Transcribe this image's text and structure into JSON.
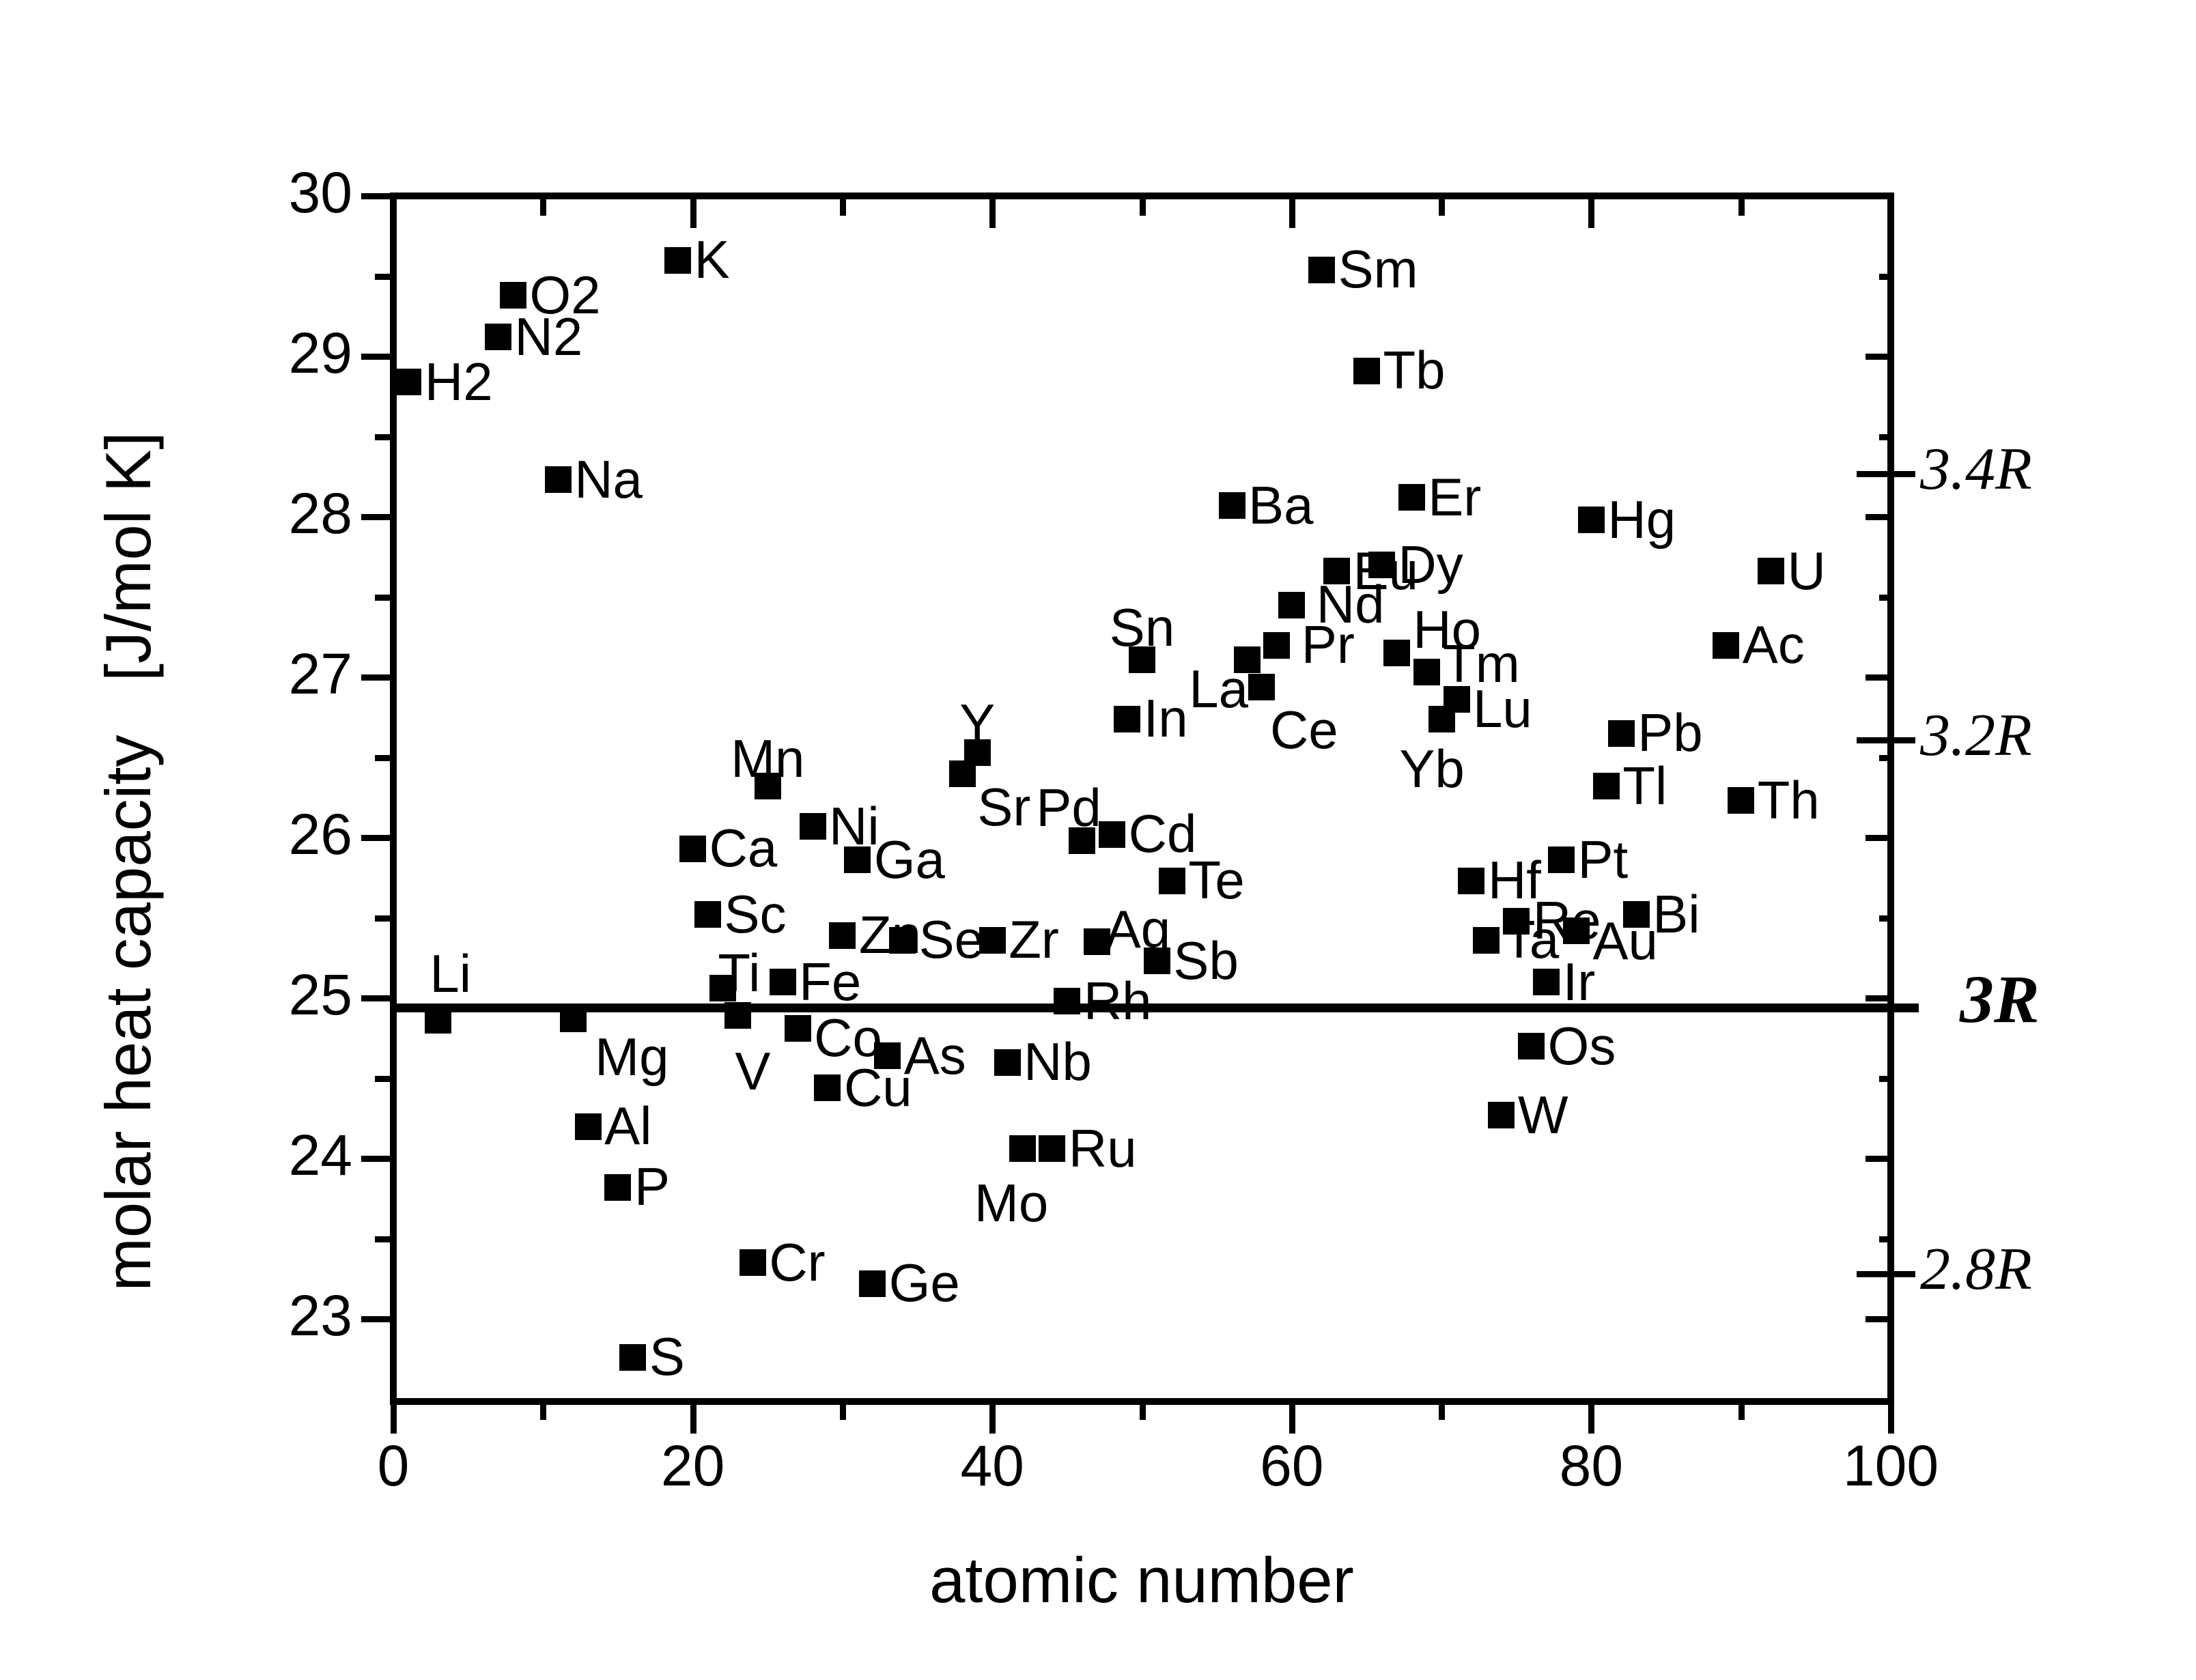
{
  "figure": {
    "background": "#ffffff",
    "foreground": "#000000"
  },
  "chart_data": {
    "type": "scatter",
    "title": "",
    "xlabel": "atomic number",
    "ylabel": "molar heat capacity   [J/mol K]",
    "xlim": [
      0,
      100
    ],
    "ylim": [
      22.5,
      30
    ],
    "grid": "off",
    "legend": "none",
    "x_major_ticks": [
      0,
      20,
      40,
      60,
      80,
      100
    ],
    "x_minor_ticks": [
      10,
      30,
      50,
      70,
      90
    ],
    "y_major_ticks": [
      23,
      24,
      25,
      26,
      27,
      28,
      29,
      30
    ],
    "y_minor_ticks": [
      23.5,
      24.5,
      25.5,
      26.5,
      27.5,
      28.5,
      29.5
    ],
    "marker": {
      "shape": "square",
      "color": "#000000"
    },
    "reference_line": {
      "label": "3R",
      "value": 24.94,
      "bold": true
    },
    "right_axis_labels": [
      {
        "text": "3.4R",
        "value": 28.27,
        "bold": false
      },
      {
        "text": "3.2R",
        "value": 26.61,
        "bold": false
      },
      {
        "text": "3R",
        "value": 24.94,
        "bold": true
      },
      {
        "text": "2.8R",
        "value": 23.28,
        "bold": false
      }
    ],
    "series": [
      {
        "name": "elements",
        "points": [
          {
            "label": "H2",
            "x": 1,
            "y": 28.84,
            "label_pos": "right"
          },
          {
            "label": "Li",
            "x": 3,
            "y": 24.86,
            "label_pos": "above",
            "dx": 18,
            "dy": -6
          },
          {
            "label": "N2",
            "x": 7,
            "y": 29.12,
            "label_pos": "right"
          },
          {
            "label": "O2",
            "x": 8,
            "y": 29.38,
            "label_pos": "right"
          },
          {
            "label": "Na",
            "x": 11,
            "y": 28.23,
            "label_pos": "right"
          },
          {
            "label": "Mg",
            "x": 12,
            "y": 24.87,
            "label_pos": "below-right",
            "dx": 10
          },
          {
            "label": "Al",
            "x": 13,
            "y": 24.2,
            "label_pos": "right"
          },
          {
            "label": "P",
            "x": 15,
            "y": 23.82,
            "label_pos": "right"
          },
          {
            "label": "S",
            "x": 16,
            "y": 22.76,
            "label_pos": "right"
          },
          {
            "label": "K",
            "x": 19,
            "y": 29.6,
            "label_pos": "right"
          },
          {
            "label": "Ca",
            "x": 20,
            "y": 25.93,
            "label_pos": "right"
          },
          {
            "label": "Sc",
            "x": 21,
            "y": 25.52,
            "label_pos": "right"
          },
          {
            "label": "Ti",
            "x": 22,
            "y": 25.06,
            "label_pos": "above",
            "dx": 24,
            "dy": 40
          },
          {
            "label": "V",
            "x": 23,
            "y": 24.89,
            "label_pos": "below",
            "dx": 22,
            "dy": 16
          },
          {
            "label": "Cr",
            "x": 24,
            "y": 23.35,
            "label_pos": "right"
          },
          {
            "label": "Mn",
            "x": 25,
            "y": 26.32,
            "label_pos": "above",
            "dy": 22
          },
          {
            "label": "Fe",
            "x": 26,
            "y": 25.1,
            "label_pos": "right"
          },
          {
            "label": "Co",
            "x": 27,
            "y": 24.81,
            "label_pos": "right",
            "dy": 14
          },
          {
            "label": "Ni",
            "x": 28,
            "y": 26.07,
            "label_pos": "right"
          },
          {
            "label": "Cu",
            "x": 29,
            "y": 24.44,
            "label_pos": "right"
          },
          {
            "label": "Zn",
            "x": 30,
            "y": 25.39,
            "label_pos": "right"
          },
          {
            "label": "Ga",
            "x": 31,
            "y": 25.86,
            "label_pos": "right"
          },
          {
            "label": "Ge",
            "x": 32,
            "y": 23.22,
            "label_pos": "right"
          },
          {
            "label": "As",
            "x": 33,
            "y": 24.64,
            "label_pos": "right"
          },
          {
            "label": "Se",
            "x": 34,
            "y": 25.36,
            "label_pos": "right"
          },
          {
            "label": "Sr",
            "x": 38,
            "y": 26.4,
            "label_pos": "below-right",
            "dy": -6
          },
          {
            "label": "Y",
            "x": 39,
            "y": 26.53,
            "label_pos": "above",
            "dy": 20
          },
          {
            "label": "Zr",
            "x": 40,
            "y": 25.36,
            "label_pos": "right"
          },
          {
            "label": "Nb",
            "x": 41,
            "y": 24.6,
            "label_pos": "right"
          },
          {
            "label": "Mo",
            "x": 42,
            "y": 24.06,
            "label_pos": "below",
            "dx": -16,
            "dy": 14
          },
          {
            "label": "Ru",
            "x": 44,
            "y": 24.06,
            "label_pos": "right"
          },
          {
            "label": "Rh",
            "x": 45,
            "y": 24.98,
            "label_pos": "right"
          },
          {
            "label": "Pd",
            "x": 46,
            "y": 25.98,
            "label_pos": "above-left"
          },
          {
            "label": "Ag",
            "x": 47,
            "y": 25.35,
            "label_pos": "above-right"
          },
          {
            "label": "Cd",
            "x": 48,
            "y": 26.02,
            "label_pos": "right"
          },
          {
            "label": "In",
            "x": 49,
            "y": 26.74,
            "label_pos": "right"
          },
          {
            "label": "Sn",
            "x": 50,
            "y": 27.11,
            "label_pos": "above",
            "dy": 16
          },
          {
            "label": "Sb",
            "x": 51,
            "y": 25.23,
            "label_pos": "right"
          },
          {
            "label": "Te",
            "x": 52,
            "y": 25.73,
            "label_pos": "right"
          },
          {
            "label": "Ba",
            "x": 56,
            "y": 28.07,
            "label_pos": "right"
          },
          {
            "label": "La",
            "x": 57,
            "y": 27.11,
            "label_pos": "left",
            "dx": 22,
            "dy": 44
          },
          {
            "label": "Ce",
            "x": 58,
            "y": 26.94,
            "label_pos": "below-right",
            "dx": -10,
            "dy": 8
          },
          {
            "label": "Pr",
            "x": 59,
            "y": 27.2,
            "label_pos": "right",
            "dx": 12
          },
          {
            "label": "Nd",
            "x": 60,
            "y": 27.45,
            "label_pos": "right",
            "dx": 12
          },
          {
            "label": "Sm",
            "x": 62,
            "y": 29.54,
            "label_pos": "right"
          },
          {
            "label": "Eu",
            "x": 63,
            "y": 27.66,
            "label_pos": "right"
          },
          {
            "label": "Tb",
            "x": 65,
            "y": 28.91,
            "label_pos": "right"
          },
          {
            "label": "Dy",
            "x": 66,
            "y": 27.7,
            "label_pos": "right"
          },
          {
            "label": "Ho",
            "x": 67,
            "y": 27.15,
            "label_pos": "right",
            "dy": -34
          },
          {
            "label": "Er",
            "x": 68,
            "y": 28.12,
            "label_pos": "right"
          },
          {
            "label": "Tm",
            "x": 69,
            "y": 27.03,
            "label_pos": "right",
            "dy": -12
          },
          {
            "label": "Yb",
            "x": 70,
            "y": 26.74,
            "label_pos": "below",
            "dx": -14,
            "dy": 8
          },
          {
            "label": "Lu",
            "x": 71,
            "y": 26.86,
            "label_pos": "right",
            "dy": 14
          },
          {
            "label": "Hf",
            "x": 72,
            "y": 25.73,
            "label_pos": "right"
          },
          {
            "label": "Ta",
            "x": 73,
            "y": 25.36,
            "label_pos": "right"
          },
          {
            "label": "W",
            "x": 74,
            "y": 24.27,
            "label_pos": "right"
          },
          {
            "label": "Re",
            "x": 75,
            "y": 25.48,
            "label_pos": "right"
          },
          {
            "label": "Os",
            "x": 76,
            "y": 24.7,
            "label_pos": "right"
          },
          {
            "label": "Ir",
            "x": 77,
            "y": 25.1,
            "label_pos": "right"
          },
          {
            "label": "Pt",
            "x": 78,
            "y": 25.86,
            "label_pos": "right"
          },
          {
            "label": "Au",
            "x": 79,
            "y": 25.42,
            "label_pos": "right",
            "dy": 16
          },
          {
            "label": "Hg",
            "x": 80,
            "y": 27.98,
            "label_pos": "right"
          },
          {
            "label": "Tl",
            "x": 81,
            "y": 26.32,
            "label_pos": "right"
          },
          {
            "label": "Pb",
            "x": 82,
            "y": 26.65,
            "label_pos": "right"
          },
          {
            "label": "Bi",
            "x": 83,
            "y": 25.52,
            "label_pos": "right"
          },
          {
            "label": "Ac",
            "x": 89,
            "y": 27.2,
            "label_pos": "right"
          },
          {
            "label": "Th",
            "x": 90,
            "y": 26.23,
            "label_pos": "right"
          },
          {
            "label": "U",
            "x": 92,
            "y": 27.66,
            "label_pos": "right"
          }
        ]
      }
    ]
  }
}
